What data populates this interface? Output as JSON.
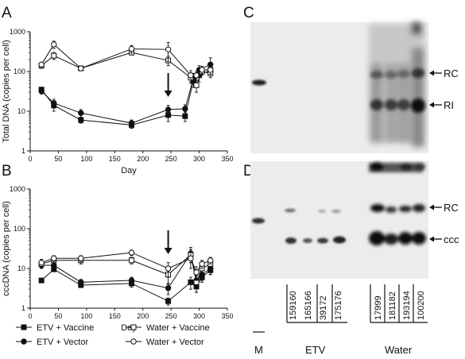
{
  "panels": {
    "A": "A",
    "B": "B",
    "C": "C",
    "D": "D"
  },
  "chart_data": [
    {
      "panel": "A",
      "type": "line",
      "xlabel": "Day",
      "ylabel": "Total DNA (copies per cell)",
      "xlim": [
        0,
        350
      ],
      "ylim": [
        1,
        1000
      ],
      "yscale": "log",
      "xticks": [
        0,
        50,
        100,
        150,
        200,
        250,
        300,
        350
      ],
      "yticks": [
        1,
        10,
        100,
        1000
      ],
      "arrow_day": 245,
      "series": [
        {
          "name": "ETV + Vaccine",
          "marker": "filled-square",
          "x": [
            20,
            42,
            90,
            180,
            245,
            275,
            290,
            300,
            320
          ],
          "y": [
            35,
            14,
            6,
            4.5,
            8,
            7.5,
            60,
            80,
            110
          ],
          "err": [
            5,
            4,
            1,
            0.8,
            2.5,
            2,
            20,
            25,
            30
          ]
        },
        {
          "name": "ETV + Vector",
          "marker": "filled-circle",
          "x": [
            20,
            42,
            90,
            180,
            245,
            275,
            290,
            300,
            320
          ],
          "y": [
            32,
            16,
            9,
            5,
            11,
            11.5,
            70,
            110,
            150
          ],
          "err": [
            5,
            4,
            2,
            1,
            3,
            3,
            20,
            30,
            70
          ]
        },
        {
          "name": "Water + Vaccine",
          "marker": "open-square",
          "x": [
            20,
            42,
            90,
            180,
            245,
            285,
            295,
            305,
            320
          ],
          "y": [
            140,
            250,
            120,
            300,
            190,
            70,
            45,
            100,
            90
          ],
          "err": [
            20,
            50,
            10,
            40,
            50,
            20,
            15,
            20,
            20
          ]
        },
        {
          "name": "Water + Vector",
          "marker": "open-circle",
          "x": [
            20,
            42,
            90,
            180,
            245,
            285,
            295,
            305,
            320
          ],
          "y": [
            150,
            480,
            120,
            370,
            360,
            80,
            80,
            110,
            110
          ],
          "err": [
            20,
            100,
            10,
            80,
            180,
            25,
            20,
            25,
            25
          ]
        }
      ]
    },
    {
      "panel": "B",
      "type": "line",
      "xlabel": "Day",
      "ylabel": "cccDNA (copies per cell)",
      "xlim": [
        0,
        350
      ],
      "ylim": [
        1,
        1000
      ],
      "yscale": "log",
      "xticks": [
        0,
        50,
        100,
        150,
        200,
        250,
        300,
        350
      ],
      "yticks": [
        1,
        10,
        100,
        1000
      ],
      "arrow_day": 245,
      "series": [
        {
          "name": "ETV + Vaccine",
          "marker": "filled-square",
          "x": [
            20,
            42,
            90,
            180,
            245,
            285,
            295,
            305,
            320
          ],
          "y": [
            5,
            9.5,
            3.8,
            4.2,
            1.5,
            4.5,
            3.5,
            6,
            9
          ],
          "err": [
            0.6,
            1.2,
            0.5,
            0.8,
            0.3,
            1.5,
            1,
            1.5,
            2
          ]
        },
        {
          "name": "ETV + Vector",
          "marker": "filled-circle",
          "x": [
            20,
            42,
            90,
            180,
            245,
            285,
            295,
            305,
            320
          ],
          "y": [
            12,
            12,
            4.5,
            5,
            3.2,
            24,
            5,
            7,
            10
          ],
          "err": [
            2,
            2,
            0.8,
            1,
            1,
            10,
            1.5,
            2,
            3
          ]
        },
        {
          "name": "Water + Vaccine",
          "marker": "open-square",
          "x": [
            20,
            42,
            90,
            180,
            245,
            285,
            295,
            305,
            320
          ],
          "y": [
            13,
            16,
            16,
            16,
            7,
            22,
            4.5,
            10,
            13
          ],
          "err": [
            3,
            3,
            3,
            3,
            3,
            8,
            2,
            3,
            3
          ]
        },
        {
          "name": "Water + Vector",
          "marker": "open-circle",
          "x": [
            20,
            42,
            90,
            180,
            245,
            285,
            295,
            305,
            320
          ],
          "y": [
            14,
            18,
            18,
            25,
            10,
            18,
            8,
            13,
            16
          ],
          "err": [
            3,
            3,
            3,
            4,
            4,
            8,
            3,
            3,
            3
          ]
        }
      ]
    }
  ],
  "legend": [
    {
      "label": "ETV + Vaccine",
      "marker": "filled-square"
    },
    {
      "label": "Water + Vaccine",
      "marker": "open-square"
    },
    {
      "label": "ETV + Vector",
      "marker": "filled-circle"
    },
    {
      "label": "Water + Vector",
      "marker": "open-circle"
    }
  ],
  "blots": {
    "C": {
      "labels": [
        "RC",
        "RI"
      ]
    },
    "D": {
      "labels": [
        "RC",
        "ccc"
      ]
    },
    "marker_lane": "M",
    "lanes": [
      "159160",
      "165166",
      "39172",
      "175176",
      "17999",
      "181182",
      "193194",
      "100200"
    ],
    "groups": [
      "ETV",
      "Water"
    ]
  }
}
